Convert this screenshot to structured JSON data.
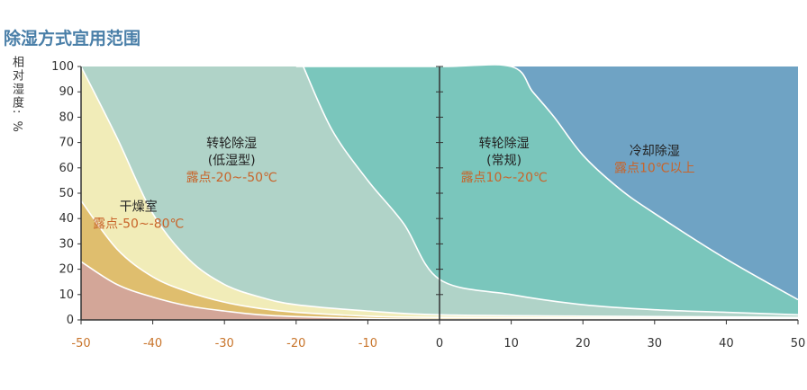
{
  "chart_data": {
    "type": "area",
    "title": "除湿方式宜用范围",
    "ylabel": "相对湿度: %",
    "xlabel": "",
    "xlim": [
      -50,
      50
    ],
    "ylim": [
      0,
      100
    ],
    "x_ticks": [
      "-50",
      "-40",
      "-30",
      "-20",
      "-10",
      "0",
      "10",
      "20",
      "30",
      "40",
      "50"
    ],
    "y_ticks": [
      "0",
      "10",
      "20",
      "30",
      "40",
      "50",
      "60",
      "70",
      "80",
      "90",
      "100"
    ],
    "regions": [
      {
        "color": "#6fa3c4"
      },
      {
        "color": "#7ac6bc"
      },
      {
        "color": "#b0d3c8"
      },
      {
        "color": "#f1ecb8"
      },
      {
        "color": "#dfbe6e"
      },
      {
        "color": "#d3a698"
      }
    ],
    "boundaries": {
      "cooling": [
        [
          -19,
          100
        ],
        [
          -15,
          75
        ],
        [
          -10,
          55
        ],
        [
          -5,
          38
        ],
        [
          0,
          16
        ],
        [
          10,
          10
        ],
        [
          20,
          6
        ],
        [
          30,
          4
        ],
        [
          40,
          3
        ],
        [
          50,
          2
        ]
      ],
      "rotor_normal": [
        [
          -20,
          100
        ],
        [
          0,
          100
        ],
        [
          10,
          100
        ],
        [
          13,
          90
        ],
        [
          16,
          80
        ],
        [
          20,
          65
        ],
        [
          25,
          52
        ],
        [
          30,
          42
        ],
        [
          40,
          24
        ],
        [
          50,
          8
        ]
      ],
      "rotor_low": [
        [
          -50,
          100
        ],
        [
          -45,
          72
        ],
        [
          -40,
          42
        ],
        [
          -35,
          24
        ],
        [
          -30,
          14
        ],
        [
          -25,
          9
        ],
        [
          -20,
          6
        ],
        [
          -10,
          3.5
        ],
        [
          0,
          2
        ],
        [
          20,
          1.5
        ],
        [
          50,
          1
        ]
      ],
      "dry_room_top": [
        [
          -50,
          47
        ],
        [
          -45,
          28
        ],
        [
          -40,
          17
        ],
        [
          -35,
          11
        ],
        [
          -30,
          7
        ],
        [
          -25,
          4.5
        ],
        [
          -20,
          3
        ],
        [
          -10,
          1.5
        ],
        [
          0,
          1
        ],
        [
          50,
          0.5
        ]
      ],
      "dry_room_inner": [
        [
          -50,
          23
        ],
        [
          -45,
          14
        ],
        [
          -40,
          9
        ],
        [
          -35,
          5.5
        ],
        [
          -30,
          3.5
        ],
        [
          -25,
          2
        ],
        [
          -20,
          1.3
        ],
        [
          -10,
          0.6
        ],
        [
          0,
          0.3
        ],
        [
          50,
          0.1
        ]
      ]
    },
    "annotations": [
      {
        "lines": [
          "转轮除湿",
          "(低湿型)"
        ],
        "dew": "露点-20~-50℃",
        "x": -29,
        "y": 68
      },
      {
        "lines": [
          "转轮除湿",
          "(常规)"
        ],
        "dew": "露点10~-20℃",
        "x": 9,
        "y": 68
      },
      {
        "lines": [
          "冷却除湿"
        ],
        "dew": "露点10℃以上",
        "x": 30,
        "y": 65
      },
      {
        "lines": [
          "干燥室"
        ],
        "dew": "露点-50~-80℃",
        "x": -42,
        "y": 43
      }
    ]
  }
}
